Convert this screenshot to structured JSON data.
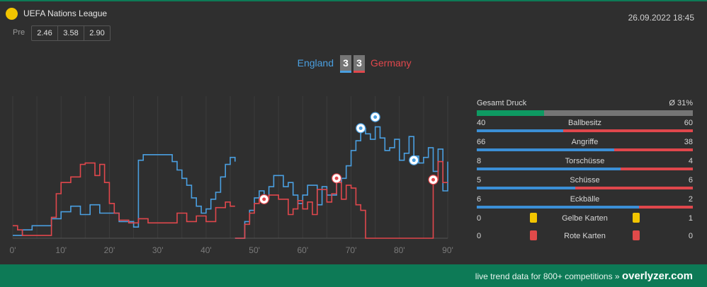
{
  "league": {
    "name": "UEFA Nations League"
  },
  "datetime": "26.09.2022 18:45",
  "odds": {
    "label": "Pre",
    "values": [
      "2.46",
      "3.58",
      "2.90"
    ]
  },
  "match": {
    "home": "England",
    "away": "Germany",
    "home_score": "3",
    "away_score": "3"
  },
  "colors": {
    "home": "#4a9fe0",
    "away": "#e0474c",
    "accent": "#0d7a56",
    "yellow": "#f2c500",
    "red": "#e04a4a"
  },
  "chart_data": {
    "type": "line",
    "xlabel": "",
    "ylabel": "",
    "x_ticks": [
      "0'",
      "10'",
      "20'",
      "30'",
      "40'",
      "50'",
      "60'",
      "70'",
      "80'",
      "90'"
    ],
    "xlim": [
      0,
      90
    ],
    "ylim": [
      0,
      100
    ],
    "series": [
      {
        "name": "England",
        "color": "#4a9fe0",
        "points": [
          [
            0,
            2
          ],
          [
            2,
            2
          ],
          [
            2,
            6
          ],
          [
            4,
            6
          ],
          [
            4,
            9
          ],
          [
            8,
            9
          ],
          [
            8,
            14
          ],
          [
            10,
            14
          ],
          [
            10,
            19
          ],
          [
            12,
            19
          ],
          [
            12,
            23
          ],
          [
            14,
            23
          ],
          [
            14,
            17
          ],
          [
            16,
            17
          ],
          [
            16,
            24
          ],
          [
            18,
            24
          ],
          [
            18,
            18
          ],
          [
            22,
            18
          ],
          [
            22,
            12
          ],
          [
            25,
            12
          ],
          [
            25,
            8
          ],
          [
            26,
            8
          ],
          [
            26,
            56
          ],
          [
            27,
            56
          ],
          [
            27,
            60
          ],
          [
            33,
            60
          ],
          [
            33,
            55
          ],
          [
            34,
            55
          ],
          [
            34,
            49
          ],
          [
            35,
            49
          ],
          [
            35,
            43
          ],
          [
            36,
            43
          ],
          [
            36,
            38
          ],
          [
            37,
            38
          ],
          [
            37,
            29
          ],
          [
            38,
            29
          ],
          [
            38,
            23
          ],
          [
            39,
            23
          ],
          [
            39,
            18
          ],
          [
            40,
            18
          ],
          [
            40,
            21
          ],
          [
            41,
            21
          ],
          [
            41,
            28
          ],
          [
            42,
            28
          ],
          [
            42,
            33
          ],
          [
            43,
            33
          ],
          [
            43,
            44
          ],
          [
            44,
            44
          ],
          [
            44,
            53
          ],
          [
            45,
            53
          ],
          [
            45,
            58
          ],
          [
            46,
            58
          ],
          [
            46,
            55
          ]
        ]
      },
      {
        "name": "England",
        "color": "#4a9fe0",
        "points": [
          [
            46,
            0
          ],
          [
            48,
            0
          ],
          [
            48,
            12
          ],
          [
            49,
            12
          ],
          [
            49,
            20
          ],
          [
            50,
            20
          ],
          [
            50,
            29
          ],
          [
            51,
            29
          ],
          [
            51,
            34
          ],
          [
            52,
            34
          ],
          [
            52,
            29
          ],
          [
            53,
            29
          ],
          [
            53,
            37
          ],
          [
            54,
            37
          ],
          [
            54,
            45
          ],
          [
            56,
            45
          ],
          [
            56,
            37
          ],
          [
            57,
            37
          ],
          [
            57,
            40
          ],
          [
            58,
            40
          ],
          [
            58,
            31
          ],
          [
            59,
            31
          ],
          [
            59,
            25
          ],
          [
            60,
            25
          ],
          [
            60,
            31
          ],
          [
            61,
            31
          ],
          [
            61,
            38
          ],
          [
            63,
            38
          ],
          [
            63,
            24
          ],
          [
            64,
            24
          ],
          [
            64,
            37
          ],
          [
            65,
            37
          ],
          [
            65,
            31
          ],
          [
            67,
            31
          ],
          [
            67,
            40
          ],
          [
            68,
            40
          ],
          [
            68,
            43
          ],
          [
            69,
            43
          ],
          [
            69,
            52
          ],
          [
            70,
            52
          ],
          [
            70,
            63
          ],
          [
            71,
            63
          ],
          [
            71,
            70
          ],
          [
            72,
            70
          ],
          [
            72,
            79
          ],
          [
            73,
            79
          ],
          [
            73,
            75
          ],
          [
            74,
            75
          ],
          [
            74,
            71
          ],
          [
            75,
            71
          ],
          [
            75,
            80
          ],
          [
            76,
            80
          ],
          [
            76,
            72
          ],
          [
            77,
            72
          ],
          [
            77,
            63
          ],
          [
            78,
            63
          ],
          [
            78,
            65
          ],
          [
            79,
            65
          ],
          [
            79,
            71
          ],
          [
            80,
            71
          ],
          [
            80,
            56
          ],
          [
            81,
            56
          ],
          [
            81,
            61
          ],
          [
            82,
            61
          ],
          [
            82,
            73
          ],
          [
            83,
            73
          ],
          [
            83,
            59
          ],
          [
            84,
            59
          ],
          [
            84,
            54
          ],
          [
            85,
            54
          ],
          [
            85,
            58
          ],
          [
            86,
            58
          ],
          [
            86,
            65
          ],
          [
            87,
            65
          ],
          [
            87,
            48
          ],
          [
            88,
            48
          ],
          [
            88,
            64
          ],
          [
            89,
            64
          ],
          [
            89,
            34
          ],
          [
            90,
            34
          ],
          [
            90,
            55
          ]
        ]
      },
      {
        "name": "Germany",
        "color": "#e0474c",
        "points": [
          [
            0,
            9
          ],
          [
            1,
            9
          ],
          [
            1,
            6
          ],
          [
            2,
            6
          ],
          [
            2,
            2
          ],
          [
            8,
            2
          ],
          [
            8,
            15
          ],
          [
            9,
            15
          ],
          [
            9,
            32
          ],
          [
            10,
            32
          ],
          [
            10,
            40
          ],
          [
            12,
            40
          ],
          [
            12,
            44
          ],
          [
            14,
            44
          ],
          [
            14,
            53
          ],
          [
            15,
            53
          ],
          [
            15,
            54
          ],
          [
            17,
            54
          ],
          [
            17,
            45
          ],
          [
            18,
            45
          ],
          [
            18,
            53
          ],
          [
            19,
            53
          ],
          [
            19,
            40
          ],
          [
            20,
            40
          ],
          [
            20,
            25
          ],
          [
            21,
            25
          ],
          [
            21,
            18
          ],
          [
            22,
            18
          ],
          [
            22,
            13
          ],
          [
            24,
            13
          ],
          [
            24,
            11
          ],
          [
            26,
            11
          ],
          [
            26,
            14
          ],
          [
            28,
            14
          ],
          [
            28,
            11
          ],
          [
            34,
            11
          ],
          [
            34,
            18
          ],
          [
            36,
            18
          ],
          [
            36,
            12
          ],
          [
            38,
            12
          ],
          [
            38,
            16
          ],
          [
            40,
            16
          ],
          [
            40,
            12
          ],
          [
            42,
            12
          ],
          [
            42,
            22
          ],
          [
            44,
            22
          ],
          [
            44,
            26
          ],
          [
            45,
            26
          ],
          [
            45,
            23
          ],
          [
            46,
            23
          ]
        ]
      },
      {
        "name": "Germany",
        "color": "#e0474c",
        "points": [
          [
            46,
            0
          ],
          [
            48,
            0
          ],
          [
            48,
            10
          ],
          [
            49,
            10
          ],
          [
            49,
            18
          ],
          [
            50,
            18
          ],
          [
            50,
            25
          ],
          [
            51,
            25
          ],
          [
            51,
            28
          ],
          [
            53,
            28
          ],
          [
            53,
            31
          ],
          [
            55,
            31
          ],
          [
            55,
            28
          ],
          [
            57,
            28
          ],
          [
            57,
            17
          ],
          [
            58,
            17
          ],
          [
            58,
            21
          ],
          [
            59,
            21
          ],
          [
            59,
            27
          ],
          [
            60,
            27
          ],
          [
            60,
            21
          ],
          [
            61,
            21
          ],
          [
            61,
            26
          ],
          [
            62,
            26
          ],
          [
            62,
            17
          ],
          [
            63,
            17
          ],
          [
            63,
            35
          ],
          [
            65,
            35
          ],
          [
            65,
            26
          ],
          [
            66,
            26
          ],
          [
            66,
            32
          ],
          [
            67,
            32
          ],
          [
            67,
            40
          ],
          [
            68,
            40
          ],
          [
            68,
            28
          ],
          [
            69,
            28
          ],
          [
            69,
            38
          ],
          [
            70,
            38
          ],
          [
            70,
            36
          ],
          [
            71,
            36
          ],
          [
            71,
            24
          ],
          [
            72,
            24
          ],
          [
            72,
            20
          ],
          [
            73,
            20
          ],
          [
            73,
            0
          ],
          [
            87,
            0
          ],
          [
            87,
            42
          ],
          [
            88,
            42
          ],
          [
            88,
            55
          ],
          [
            89,
            55
          ],
          [
            89,
            40
          ],
          [
            90,
            40
          ]
        ]
      }
    ],
    "goals": [
      {
        "team": "England",
        "minute": 72,
        "value": 79
      },
      {
        "team": "England",
        "minute": 75,
        "value": 87
      },
      {
        "team": "England",
        "minute": 83,
        "value": 56
      },
      {
        "team": "Germany",
        "minute": 52,
        "value": 28
      },
      {
        "team": "Germany",
        "minute": 67,
        "value": 43
      },
      {
        "team": "Germany",
        "minute": 87,
        "value": 42
      }
    ]
  },
  "stats": {
    "gesamt": {
      "label": "Gesamt Druck",
      "value": "Ø 31%",
      "fraction": 0.31
    },
    "rows": [
      {
        "label": "Ballbesitz",
        "home": "40",
        "away": "60"
      },
      {
        "label": "Angriffe",
        "home": "66",
        "away": "38"
      },
      {
        "label": "Torschüsse",
        "home": "8",
        "away": "4"
      },
      {
        "label": "Schüsse",
        "home": "5",
        "away": "6"
      },
      {
        "label": "Eckbälle",
        "home": "6",
        "away": "2"
      }
    ],
    "cards": [
      {
        "label": "Gelbe Karten",
        "home": "0",
        "away": "1",
        "color": "#f2c500"
      },
      {
        "label": "Rote Karten",
        "home": "0",
        "away": "0",
        "color": "#e04a4a"
      }
    ]
  },
  "footer": {
    "text": "live trend data for 800+ competitions »",
    "brand": "overlyzer.com"
  }
}
